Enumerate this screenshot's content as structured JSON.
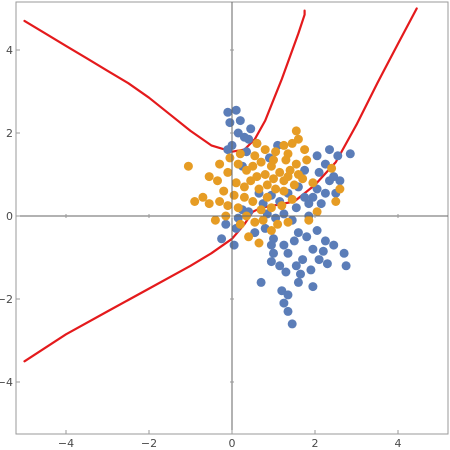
{
  "chart_data": {
    "type": "scatter",
    "title": "",
    "xlabel": "",
    "ylabel": "",
    "xlim": [
      -5.2,
      5.2
    ],
    "ylim": [
      -5.2,
      5.2
    ],
    "x_ticks": [
      -4,
      -2,
      0,
      2,
      4
    ],
    "y_ticks": [
      -4,
      -2,
      0,
      2,
      4
    ],
    "tick_labels": {
      "x": [
        "−4",
        "−2",
        "0",
        "2",
        "4"
      ],
      "y": [
        "−4",
        "−2",
        "0",
        "2",
        "4"
      ]
    },
    "grid": false,
    "axes_through_origin": true,
    "colors": {
      "series_blue": "#5b7db8",
      "series_orange": "#e69c24",
      "boundary": "#e41a1c",
      "axes": "#666666",
      "frame": "#9a9a9a"
    },
    "series": [
      {
        "color_key": "series_blue",
        "points": [
          [
            -0.1,
            2.5
          ],
          [
            0.1,
            2.55
          ],
          [
            -0.05,
            2.25
          ],
          [
            0.2,
            2.3
          ],
          [
            0.15,
            2.0
          ],
          [
            0.3,
            1.9
          ],
          [
            0.0,
            1.7
          ],
          [
            0.4,
            1.85
          ],
          [
            0.6,
            1.75
          ],
          [
            -0.1,
            1.6
          ],
          [
            0.35,
            1.55
          ],
          [
            0.45,
            2.1
          ],
          [
            0.25,
            1.2
          ],
          [
            0.9,
            1.4
          ],
          [
            1.1,
            1.7
          ],
          [
            2.35,
            1.6
          ],
          [
            2.55,
            1.45
          ],
          [
            2.85,
            1.5
          ],
          [
            2.05,
            1.45
          ],
          [
            2.25,
            1.25
          ],
          [
            1.75,
            1.1
          ],
          [
            2.1,
            1.05
          ],
          [
            2.35,
            0.85
          ],
          [
            2.45,
            0.95
          ],
          [
            2.05,
            0.65
          ],
          [
            2.6,
            0.85
          ],
          [
            2.25,
            0.55
          ],
          [
            1.95,
            0.45
          ],
          [
            1.6,
            0.7
          ],
          [
            1.75,
            0.45
          ],
          [
            1.35,
            0.55
          ],
          [
            1.55,
            0.2
          ],
          [
            1.85,
            0.3
          ],
          [
            2.15,
            0.3
          ],
          [
            2.5,
            0.55
          ],
          [
            1.15,
            0.35
          ],
          [
            0.95,
            0.5
          ],
          [
            0.75,
            0.3
          ],
          [
            0.4,
            0.1
          ],
          [
            0.25,
            0.15
          ],
          [
            0.85,
            0.05
          ],
          [
            1.05,
            -0.05
          ],
          [
            1.25,
            0.05
          ],
          [
            1.45,
            -0.1
          ],
          [
            1.85,
            0.0
          ],
          [
            0.15,
            -0.05
          ],
          [
            -0.15,
            -0.2
          ],
          [
            0.1,
            -0.3
          ],
          [
            -0.25,
            -0.55
          ],
          [
            0.05,
            -0.7
          ],
          [
            0.55,
            -0.4
          ],
          [
            0.8,
            -0.3
          ],
          [
            1.0,
            -0.55
          ],
          [
            1.25,
            -0.7
          ],
          [
            1.6,
            -0.4
          ],
          [
            1.8,
            -0.5
          ],
          [
            2.05,
            -0.35
          ],
          [
            2.25,
            -0.6
          ],
          [
            1.95,
            -0.8
          ],
          [
            2.2,
            -0.85
          ],
          [
            2.45,
            -0.7
          ],
          [
            2.7,
            -0.9
          ],
          [
            2.1,
            -1.05
          ],
          [
            2.3,
            -1.15
          ],
          [
            2.75,
            -1.2
          ],
          [
            1.7,
            -1.05
          ],
          [
            1.35,
            -0.9
          ],
          [
            1.55,
            -1.2
          ],
          [
            0.95,
            -0.7
          ],
          [
            0.95,
            -1.1
          ],
          [
            1.15,
            -1.2
          ],
          [
            1.3,
            -1.35
          ],
          [
            1.65,
            -1.4
          ],
          [
            1.9,
            -1.3
          ],
          [
            1.6,
            -1.6
          ],
          [
            0.7,
            -1.6
          ],
          [
            1.2,
            -1.8
          ],
          [
            1.35,
            -1.9
          ],
          [
            1.25,
            -2.1
          ],
          [
            1.35,
            -2.3
          ],
          [
            1.45,
            -2.6
          ],
          [
            1.95,
            -1.7
          ],
          [
            1.0,
            -0.9
          ],
          [
            1.5,
            -0.6
          ],
          [
            0.65,
            0.55
          ]
        ]
      },
      {
        "color_key": "series_orange",
        "points": [
          [
            1.55,
            2.05
          ],
          [
            1.6,
            1.85
          ],
          [
            1.45,
            1.75
          ],
          [
            1.25,
            1.7
          ],
          [
            1.35,
            1.5
          ],
          [
            1.75,
            1.6
          ],
          [
            1.55,
            1.25
          ],
          [
            1.3,
            1.35
          ],
          [
            1.05,
            1.55
          ],
          [
            0.8,
            1.6
          ],
          [
            0.55,
            1.45
          ],
          [
            0.7,
            1.3
          ],
          [
            0.5,
            1.2
          ],
          [
            0.95,
            1.2
          ],
          [
            1.15,
            1.05
          ],
          [
            1.4,
            1.1
          ],
          [
            1.6,
            1.0
          ],
          [
            1.8,
            1.35
          ],
          [
            1.7,
            0.9
          ],
          [
            1.95,
            0.8
          ],
          [
            1.5,
            0.75
          ],
          [
            1.25,
            0.85
          ],
          [
            1.0,
            0.9
          ],
          [
            0.8,
            1.0
          ],
          [
            0.6,
            0.95
          ],
          [
            0.35,
            1.1
          ],
          [
            0.15,
            1.25
          ],
          [
            -0.1,
            1.05
          ],
          [
            0.1,
            0.8
          ],
          [
            0.3,
            0.7
          ],
          [
            0.45,
            0.85
          ],
          [
            0.65,
            0.65
          ],
          [
            0.85,
            0.75
          ],
          [
            1.05,
            0.65
          ],
          [
            1.25,
            0.6
          ],
          [
            1.45,
            0.4
          ],
          [
            1.2,
            0.25
          ],
          [
            0.95,
            0.2
          ],
          [
            0.7,
            0.15
          ],
          [
            0.5,
            0.35
          ],
          [
            0.3,
            0.45
          ],
          [
            0.05,
            0.5
          ],
          [
            -0.2,
            0.6
          ],
          [
            -0.35,
            0.85
          ],
          [
            -0.55,
            0.95
          ],
          [
            -0.3,
            1.25
          ],
          [
            -0.05,
            1.4
          ],
          [
            0.2,
            1.5
          ],
          [
            -0.7,
            0.45
          ],
          [
            -0.9,
            0.35
          ],
          [
            -1.05,
            1.2
          ],
          [
            -0.55,
            0.3
          ],
          [
            -0.3,
            0.35
          ],
          [
            -0.1,
            0.25
          ],
          [
            0.15,
            0.2
          ],
          [
            0.35,
            0.0
          ],
          [
            0.55,
            -0.15
          ],
          [
            0.75,
            -0.1
          ],
          [
            1.1,
            -0.2
          ],
          [
            1.35,
            -0.15
          ],
          [
            0.2,
            -0.2
          ],
          [
            -0.15,
            0.0
          ],
          [
            -0.4,
            -0.1
          ],
          [
            0.4,
            -0.5
          ],
          [
            0.65,
            -0.65
          ],
          [
            0.95,
            -0.35
          ],
          [
            1.85,
            -0.1
          ],
          [
            2.05,
            0.1
          ],
          [
            2.5,
            0.35
          ],
          [
            2.6,
            0.65
          ],
          [
            2.4,
            1.15
          ],
          [
            1.35,
            0.95
          ],
          [
            1.0,
            1.35
          ],
          [
            0.6,
            1.75
          ],
          [
            0.85,
            0.45
          ]
        ]
      }
    ],
    "curves": [
      {
        "color_key": "boundary",
        "points": [
          [
            -5.0,
            4.7
          ],
          [
            -4.5,
            4.4
          ],
          [
            -4.0,
            4.1
          ],
          [
            -3.5,
            3.8
          ],
          [
            -3.0,
            3.5
          ],
          [
            -2.5,
            3.2
          ],
          [
            -2.0,
            2.85
          ],
          [
            -1.5,
            2.45
          ],
          [
            -1.0,
            2.05
          ],
          [
            -0.5,
            1.7
          ],
          [
            0.0,
            1.55
          ],
          [
            0.3,
            1.6
          ],
          [
            0.55,
            1.85
          ],
          [
            0.8,
            2.3
          ],
          [
            1.0,
            2.8
          ],
          [
            1.2,
            3.3
          ],
          [
            1.4,
            3.85
          ],
          [
            1.6,
            4.4
          ],
          [
            1.75,
            4.85
          ],
          [
            1.75,
            4.95
          ]
        ]
      },
      {
        "color_key": "boundary",
        "points": [
          [
            -5.0,
            -3.5
          ],
          [
            -4.0,
            -2.85
          ],
          [
            -3.0,
            -2.3
          ],
          [
            -2.0,
            -1.75
          ],
          [
            -1.0,
            -1.2
          ],
          [
            -0.5,
            -0.9
          ],
          [
            0.0,
            -0.55
          ],
          [
            0.3,
            -0.2
          ],
          [
            0.5,
            0.1
          ],
          [
            0.7,
            0.2
          ],
          [
            1.0,
            0.25
          ],
          [
            1.5,
            0.35
          ],
          [
            2.0,
            0.75
          ],
          [
            2.5,
            1.3
          ],
          [
            3.0,
            2.2
          ],
          [
            3.5,
            3.2
          ],
          [
            4.0,
            4.15
          ],
          [
            4.45,
            5.0
          ]
        ]
      }
    ]
  }
}
